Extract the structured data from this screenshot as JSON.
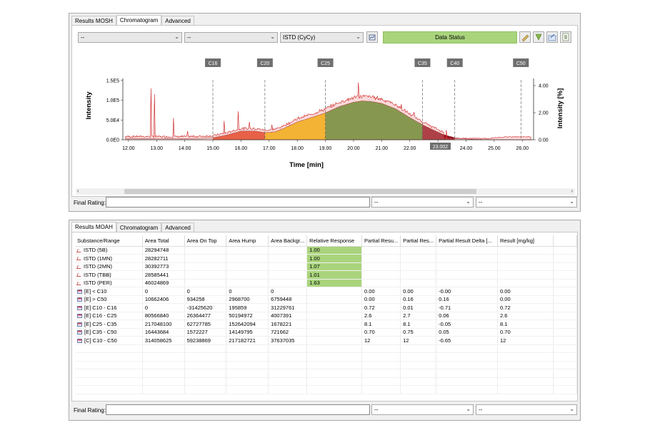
{
  "mosh": {
    "tabs": [
      "Results MOSH",
      "Chromatogram",
      "Advanced"
    ],
    "active_tab": 1,
    "combo1": "--",
    "combo2": "--",
    "standard_select": "ISTD (CyCy)",
    "data_status": "Data Status",
    "final_rating_label": "Final Rating:",
    "rating_combo1": "--",
    "rating_combo2": "--"
  },
  "chart_data": {
    "type": "area",
    "xlabel": "Time [min]",
    "ylabel": "Intensity",
    "ylabel_right": "Intensity [%]",
    "xlim": [
      11.8,
      26.4
    ],
    "x_ticks": [
      "12.00",
      "13.00",
      "14.00",
      "15.00",
      "16.00",
      "17.00",
      "18.00",
      "19.00",
      "20.00",
      "21.00",
      "22.00",
      "23.00",
      "24.00",
      "25.00",
      "26.00"
    ],
    "y_ticks": [
      "0.0E0",
      "5.0E4",
      "1.0E5",
      "1.5E5"
    ],
    "y_ticks_right": [
      "0.00",
      "2.00",
      "4.00"
    ],
    "ylim": [
      0,
      155000
    ],
    "markers": [
      {
        "label": "C16",
        "x": 15.0
      },
      {
        "label": "C20",
        "x": 16.85
      },
      {
        "label": "C25",
        "x": 19.0
      },
      {
        "label": "C35",
        "x": 22.45
      },
      {
        "label": "C40",
        "x": 23.6
      },
      {
        "label": "C50",
        "x": 25.95
      }
    ],
    "retention_label": "23.002",
    "regions": [
      {
        "name": "C16 - C20",
        "from": 15.0,
        "to": 16.85,
        "color": "#e2461e"
      },
      {
        "name": "C20 - C25",
        "from": 16.85,
        "to": 19.0,
        "color": "#f5c400"
      },
      {
        "name": "C25 - C35",
        "from": 19.0,
        "to": 22.45,
        "color": "#4e9a2a"
      },
      {
        "name": "C35 - C40",
        "from": 22.45,
        "to": 23.6,
        "color": "#8a1420"
      }
    ],
    "hump": {
      "x": [
        11.9,
        12.5,
        13.5,
        14.5,
        15.0,
        15.5,
        16.0,
        16.5,
        16.85,
        17.2,
        17.5,
        18.0,
        18.5,
        19.0,
        19.5,
        20.0,
        20.3,
        20.6,
        21.0,
        21.5,
        22.0,
        22.45,
        22.8,
        23.2,
        23.6,
        24.0,
        24.5,
        25.0,
        26.0,
        26.4
      ],
      "y": [
        3000,
        3000,
        2500,
        3500,
        5000,
        12000,
        22000,
        22000,
        18000,
        20000,
        28000,
        45000,
        56000,
        68000,
        84000,
        95000,
        98000,
        97000,
        92000,
        78000,
        56000,
        38000,
        26000,
        13000,
        5000,
        2000,
        800,
        0,
        0,
        0
      ]
    }
  },
  "moah": {
    "tabs": [
      "Results MOAH",
      "Chromatogram",
      "Advanced"
    ],
    "active_tab": 0,
    "columns": [
      "Substance/Range",
      "Area Total",
      "Area On Top",
      "Area Hump",
      "Area Backgr...",
      "Relative Response",
      "Partial Resu...",
      "Partial Res...",
      "Partial Result Delta [...",
      "Result [mg/kg]"
    ],
    "rows": [
      {
        "icon": "istd",
        "name": "ISTD (5B)",
        "total": "28294748",
        "top": "",
        "hump": "",
        "bg": "",
        "rr": "1.00",
        "p1": "",
        "p2": "",
        "delta": "",
        "result": ""
      },
      {
        "icon": "istd",
        "name": "ISTD (1MN)",
        "total": "28282711",
        "top": "",
        "hump": "",
        "bg": "",
        "rr": "1.00",
        "p1": "",
        "p2": "",
        "delta": "",
        "result": ""
      },
      {
        "icon": "istd",
        "name": "ISTD (2MN)",
        "total": "30392773",
        "top": "",
        "hump": "",
        "bg": "",
        "rr": "1.07",
        "p1": "",
        "p2": "",
        "delta": "",
        "result": ""
      },
      {
        "icon": "istd",
        "name": "ISTD (TBB)",
        "total": "28585441",
        "top": "",
        "hump": "",
        "bg": "",
        "rr": "1.01",
        "p1": "",
        "p2": "",
        "delta": "",
        "result": ""
      },
      {
        "icon": "istd",
        "name": "ISTD (PER)",
        "total": "46024869",
        "top": "",
        "hump": "",
        "bg": "",
        "rr": "1.63",
        "p1": "",
        "p2": "",
        "delta": "",
        "result": ""
      },
      {
        "icon": "range",
        "name": "[E] < C10",
        "total": "0",
        "top": "0",
        "hump": "0",
        "bg": "0",
        "rr": "",
        "p1": "0.00",
        "p2": "0.00",
        "delta": "-0.00",
        "result": "0.00"
      },
      {
        "icon": "range",
        "name": "[E] > C50",
        "total": "10662406",
        "top": "934258",
        "hump": "2968700",
        "bg": "6759448",
        "rr": "",
        "p1": "0.00",
        "p2": "0.16",
        "delta": "0.16",
        "result": "0.00"
      },
      {
        "icon": "range",
        "name": "[E] C10 - C16",
        "total": "0",
        "top": "-31425620",
        "hump": "195859",
        "bg": "31229761",
        "rr": "",
        "p1": "0.72",
        "p2": "0.01",
        "delta": "-0.71",
        "result": "0.72"
      },
      {
        "icon": "range",
        "name": "[E] C16 - C25",
        "total": "80566840",
        "top": "26364477",
        "hump": "50194972",
        "bg": "4007391",
        "rr": "",
        "p1": "2.6",
        "p2": "2.7",
        "delta": "0.06",
        "result": "2.6"
      },
      {
        "icon": "range",
        "name": "[E] C25 - C35",
        "total": "217048100",
        "top": "62727785",
        "hump": "152642094",
        "bg": "1678221",
        "rr": "",
        "p1": "8.1",
        "p2": "8.1",
        "delta": "-0.05",
        "result": "8.1"
      },
      {
        "icon": "range",
        "name": "[E] C35 - C50",
        "total": "16443684",
        "top": "1572227",
        "hump": "14149795",
        "bg": "721662",
        "rr": "",
        "p1": "0.70",
        "p2": "0.75",
        "delta": "0.05",
        "result": "0.70"
      },
      {
        "icon": "range",
        "name": "[C] C10 - C50",
        "total": "314058625",
        "top": "59238869",
        "hump": "217182721",
        "bg": "37637035",
        "rr": "",
        "p1": "12",
        "p2": "12",
        "delta": "-0.65",
        "result": "12"
      }
    ],
    "final_rating_label": "Final Rating:",
    "rating_combo1": "--",
    "rating_combo2": "--"
  }
}
